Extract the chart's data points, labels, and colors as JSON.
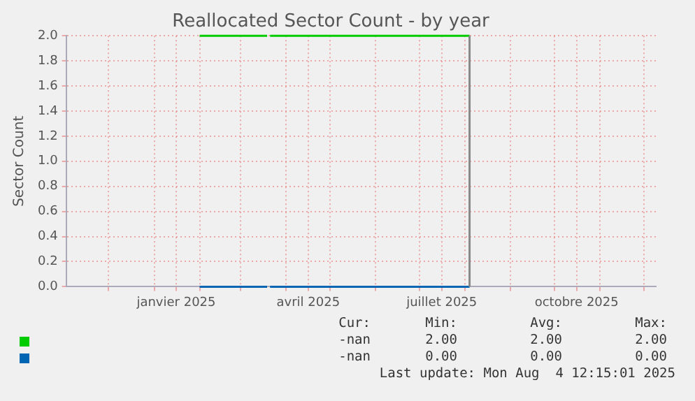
{
  "chart_data": {
    "type": "line",
    "title": "Reallocated Sector Count - by year",
    "ylabel": "Sector Count",
    "series": [
      {
        "color": "#00cc00",
        "x": [
          "2025-02-01",
          "2025-03-19",
          "2025-03-20",
          "2025-03-21",
          "2025-08-04"
        ],
        "values": [
          2,
          2,
          null,
          2,
          2
        ]
      },
      {
        "color": "#0066b3",
        "x": [
          "2025-02-01",
          "2025-03-19",
          "2025-03-20",
          "2025-03-21",
          "2025-08-04"
        ],
        "values": [
          0,
          0,
          null,
          0,
          0
        ]
      }
    ],
    "xlim": [
      "2024-11-02",
      "2025-12-09"
    ],
    "xticks": [
      {
        "value": "2024-12-01",
        "label": null
      },
      {
        "value": "2025-01-01",
        "label": null
      },
      {
        "value": "2025-01-16",
        "label": "janvier 2025"
      },
      {
        "value": "2025-02-01",
        "label": null
      },
      {
        "value": "2025-03-01",
        "label": null
      },
      {
        "value": "2025-04-01",
        "label": null
      },
      {
        "value": "2025-04-16",
        "label": "avril 2025"
      },
      {
        "value": "2025-05-01",
        "label": null
      },
      {
        "value": "2025-06-01",
        "label": null
      },
      {
        "value": "2025-07-01",
        "label": null
      },
      {
        "value": "2025-07-16",
        "label": "juillet 2025"
      },
      {
        "value": "2025-08-01",
        "label": null
      },
      {
        "value": "2025-09-01",
        "label": null
      },
      {
        "value": "2025-10-01",
        "label": null
      },
      {
        "value": "2025-10-16",
        "label": "octobre 2025"
      },
      {
        "value": "2025-11-01",
        "label": null
      },
      {
        "value": "2025-12-01",
        "label": null
      }
    ],
    "ylim": [
      0,
      2
    ],
    "yticks": [
      {
        "value": 0,
        "label": "0.0"
      },
      {
        "value": 0.2,
        "label": "0.2"
      },
      {
        "value": 0.4,
        "label": "0.4"
      },
      {
        "value": 0.6,
        "label": "0.6"
      },
      {
        "value": 0.8,
        "label": "0.8"
      },
      {
        "value": 1,
        "label": "1.0"
      },
      {
        "value": 1.2,
        "label": "1.2"
      },
      {
        "value": 1.4,
        "label": "1.4"
      },
      {
        "value": 1.6,
        "label": "1.6"
      },
      {
        "value": 1.8,
        "label": "1.8"
      },
      {
        "value": 2,
        "label": "2.0"
      }
    ],
    "ref_lines": [
      {
        "axis": "x",
        "value": "2025-08-04",
        "color": "#888888"
      }
    ],
    "grid": true,
    "legend": false,
    "marker": "none",
    "line_style": "solid",
    "annotations": [
      "Cur:",
      "Min:",
      "Avg:",
      "Max:",
      "-nan",
      "2.00",
      "2.00",
      "2.00",
      "-nan",
      "0.00",
      "0.00",
      "0.00",
      "Last update: Mon Aug  4 12:15:01 2025"
    ]
  }
}
